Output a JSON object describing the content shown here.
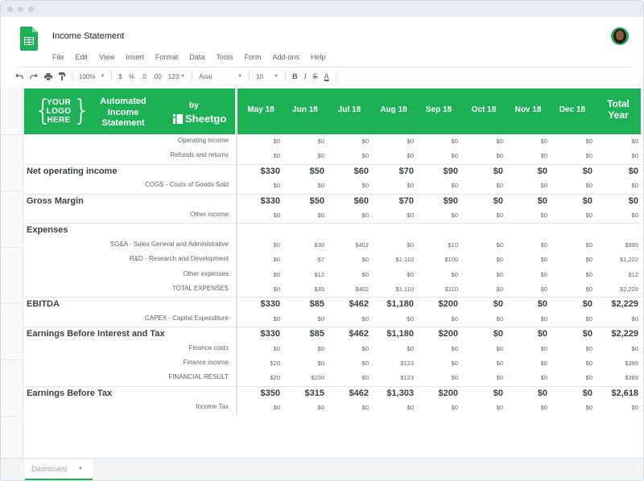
{
  "app": {
    "doc_title": "Income Statement",
    "menu": [
      "File",
      "Edit",
      "View",
      "Insert",
      "Format",
      "Data",
      "Tools",
      "Form",
      "Add-ons",
      "Help"
    ]
  },
  "toolbar": {
    "zoom": "100%",
    "currency": "$",
    "percent": "%",
    "dec_less": ".0",
    "dec_more": ".00",
    "format_more": "123",
    "font": "Arial",
    "font_size": "10",
    "bold": "B",
    "italic": "I",
    "strike": "S",
    "text_color": "A"
  },
  "banner": {
    "logo_text": "YOUR LOGO HERE",
    "title": "Automated Income Statement",
    "by": "by",
    "brand": "Sheetgo",
    "months": [
      "May 18",
      "Jun 18",
      "Jul 18",
      "Aug 18",
      "Sep 18",
      "Oct 18",
      "Nov 18",
      "Dec 18"
    ],
    "total": "Total Year",
    "bg_color": "#1db156"
  },
  "rows": [
    {
      "label": "Operating income",
      "section": false,
      "values": [
        "$0",
        "$0",
        "$0",
        "$0",
        "$0",
        "$0",
        "$0",
        "$0",
        "$0"
      ]
    },
    {
      "label": "Refunds and returns",
      "section": false,
      "values": [
        "$0",
        "$0",
        "$0",
        "$0",
        "$0",
        "$0",
        "$0",
        "$0",
        "$0"
      ]
    },
    {
      "label": "Net operating income",
      "section": true,
      "values": [
        "$330",
        "$50",
        "$60",
        "$70",
        "$90",
        "$0",
        "$0",
        "$0",
        "$0"
      ]
    },
    {
      "label": "COGS - Costs of Goods Sold",
      "section": false,
      "values": [
        "$0",
        "$0",
        "$0",
        "$0",
        "$0",
        "$0",
        "$0",
        "$0",
        "$0"
      ]
    },
    {
      "label": "Gross Margin",
      "section": true,
      "values": [
        "$330",
        "$50",
        "$60",
        "$70",
        "$90",
        "$0",
        "$0",
        "$0",
        "$0"
      ]
    },
    {
      "label": "Other income",
      "section": false,
      "values": [
        "$0",
        "$0",
        "$0",
        "$0",
        "$0",
        "$0",
        "$0",
        "$0",
        "$0"
      ]
    },
    {
      "label": "Expenses",
      "section": true,
      "values": [
        "",
        "",
        "",
        "",
        "",
        "",
        "",
        "",
        ""
      ]
    },
    {
      "label": "SG&A - Sales General and Administrative",
      "section": false,
      "values": [
        "$0",
        "$30",
        "$402",
        "$0",
        "$10",
        "$0",
        "$0",
        "$0",
        "$995"
      ]
    },
    {
      "label": "R&D - Research and Development",
      "section": false,
      "values": [
        "$0",
        "-$7",
        "$0",
        "$1,110",
        "$100",
        "$0",
        "$0",
        "$0",
        "$1,222"
      ]
    },
    {
      "label": "Other expenses",
      "section": false,
      "values": [
        "$0",
        "$12",
        "$0",
        "$0",
        "$0",
        "$0",
        "$0",
        "$0",
        "$12"
      ]
    },
    {
      "label": "TOTAL EXPENSES",
      "section": false,
      "values": [
        "$0",
        "$35",
        "$402",
        "$1,110",
        "$110",
        "$0",
        "$0",
        "$0",
        "$2,229"
      ]
    },
    {
      "label": "EBITDA",
      "section": true,
      "values": [
        "$330",
        "$85",
        "$462",
        "$1,180",
        "$200",
        "$0",
        "$0",
        "$0",
        "$2,229"
      ]
    },
    {
      "label": "CAPEX - Capital Expenditure",
      "section": false,
      "values": [
        "$0",
        "$0",
        "$0",
        "$0",
        "$0",
        "$0",
        "$0",
        "$0",
        "$0"
      ]
    },
    {
      "label": "Earnings Before Interest and Tax",
      "section": true,
      "values": [
        "$330",
        "$85",
        "$462",
        "$1,180",
        "$200",
        "$0",
        "$0",
        "$0",
        "$2,229"
      ]
    },
    {
      "label": "Finance costs",
      "section": false,
      "values": [
        "$0",
        "$0",
        "$0",
        "$0",
        "$0",
        "$0",
        "$0",
        "$0",
        "$0"
      ]
    },
    {
      "label": "Finance income",
      "section": false,
      "values": [
        "$20",
        "$0",
        "$0",
        "$123",
        "$0",
        "$0",
        "$0",
        "$0",
        "$389"
      ]
    },
    {
      "label": "FINANCIAL RESULT",
      "section": false,
      "values": [
        "$20",
        "$230",
        "$0",
        "$123",
        "$0",
        "$0",
        "$0",
        "$0",
        "$389"
      ]
    },
    {
      "label": "Earnings Before Tax",
      "section": true,
      "values": [
        "$350",
        "$315",
        "$462",
        "$1,303",
        "$200",
        "$0",
        "$0",
        "$0",
        "$2,618"
      ]
    },
    {
      "label": "Income Tax",
      "section": false,
      "values": [
        "$0",
        "$0",
        "$0",
        "$0",
        "$0",
        "$0",
        "$0",
        "$0",
        "$0"
      ]
    }
  ],
  "sheet_tabs": [
    {
      "label": "Dashboard",
      "active": true
    }
  ]
}
